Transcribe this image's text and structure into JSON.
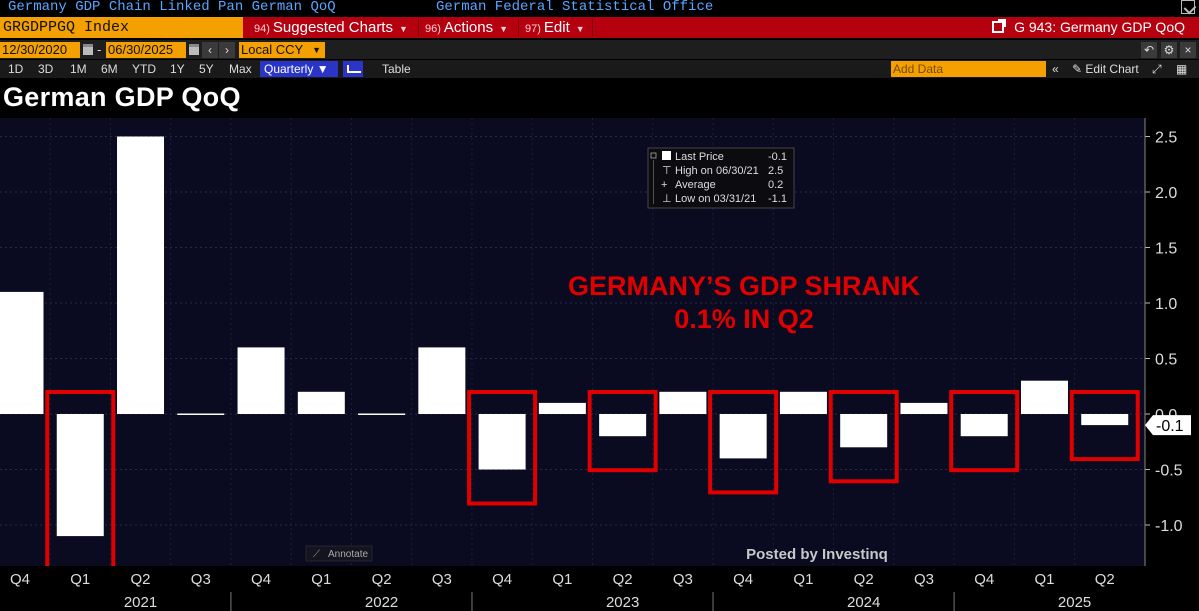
{
  "header": {
    "security_name": "Germany GDP Chain Linked Pan German QoQ",
    "source": "German Federal Statistical Office",
    "ticker": "GRGDPPGQ Index",
    "menus": [
      {
        "num": "94)",
        "label": "Suggested Charts"
      },
      {
        "num": "96)",
        "label": "Actions"
      },
      {
        "num": "97)",
        "label": "Edit"
      }
    ],
    "chart_ref": "G 943: Germany GDP QoQ"
  },
  "toolbar": {
    "start_date": "12/30/2020",
    "end_date": "06/30/2025",
    "currency": "Local CCY",
    "periods": [
      "1D",
      "3D",
      "1M",
      "6M",
      "YTD",
      "1Y",
      "5Y",
      "Max"
    ],
    "frequency": "Quarterly",
    "table_label": "Table",
    "add_data_placeholder": "Add Data",
    "edit_chart_label": "Edit Chart"
  },
  "colors": {
    "accent_orange": "#f3a000",
    "menu_red": "#b4000f",
    "selected_blue": "#2a35c8",
    "annotation_red": "#e00000",
    "plot_bg": "#0a0a20"
  },
  "chart_data": {
    "type": "bar",
    "title": "German GDP QoQ",
    "quarter_labels": [
      "Q4",
      "Q1",
      "Q2",
      "Q3",
      "Q4",
      "Q1",
      "Q2",
      "Q3",
      "Q4",
      "Q1",
      "Q2",
      "Q3",
      "Q4",
      "Q1",
      "Q2",
      "Q3",
      "Q4",
      "Q1",
      "Q2"
    ],
    "year_labels": [
      {
        "label": "2021",
        "index": 2
      },
      {
        "label": "2022",
        "index": 6
      },
      {
        "label": "2023",
        "index": 10
      },
      {
        "label": "2024",
        "index": 14
      },
      {
        "label": "2025",
        "index": 17.5
      }
    ],
    "values": [
      1.1,
      -1.1,
      2.5,
      0.0,
      0.6,
      0.2,
      0.0,
      0.6,
      -0.5,
      0.1,
      -0.2,
      0.2,
      -0.4,
      0.2,
      -0.3,
      0.1,
      -0.2,
      0.3,
      -0.1
    ],
    "highlighted": [
      1,
      8,
      10,
      12,
      14,
      16,
      18
    ],
    "yticks": [
      "2.5",
      "2.0",
      "1.5",
      "1.0",
      "0.5",
      "0.0",
      "-0.5",
      "-1.0"
    ],
    "ylim": [
      -1.3,
      2.5
    ],
    "last_value_label": "-0.1",
    "legend": [
      {
        "label": "Last Price",
        "value": "-0.1"
      },
      {
        "label": "High on 06/30/21",
        "value": "2.5"
      },
      {
        "label": "Average",
        "value": "0.2"
      },
      {
        "label": "Low on 03/31/21",
        "value": "-1.1"
      }
    ],
    "annotation_line1": "GERMANY’S GDP SHRANK",
    "annotation_line2": "0.1% IN Q2",
    "annotate_label": "Annotate",
    "watermark": "Posted by Investinq"
  }
}
